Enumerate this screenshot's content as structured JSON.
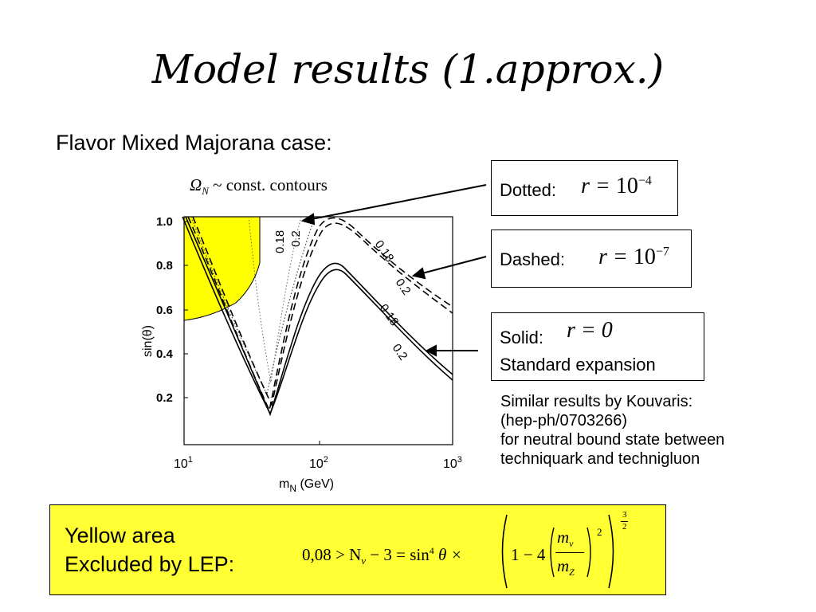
{
  "slide": {
    "title": "Model results (1.approx.)",
    "subtitle": "Flavor Mixed Majorana case:"
  },
  "plot": {
    "title_prefix": "Ω",
    "title_sub": "N",
    "title_rest": " ~ const.  contours",
    "ylabel": "sin(θ)",
    "xlabel_main": "m",
    "xlabel_sub": "N",
    "xlabel_unit": " (GeV)",
    "yticks": [
      "1.0",
      "0.8",
      "0.6",
      "0.4",
      "0.2"
    ],
    "xticks": [
      {
        "base": "10",
        "exp": "1"
      },
      {
        "base": "10",
        "exp": "2"
      },
      {
        "base": "10",
        "exp": "3"
      }
    ],
    "contour_labels": [
      "0.18",
      "0.2",
      "0.18",
      "0.2",
      "0.18",
      "0.2"
    ],
    "colors": {
      "excluded": "#ffff00",
      "axis": "#000000"
    }
  },
  "legend": {
    "dotted_label": "Dotted:",
    "dotted_eq_r": "r",
    "dotted_eq_val": "10",
    "dotted_eq_exp": "−4",
    "dashed_label": "Dashed:",
    "dashed_eq_r": "r",
    "dashed_eq_val": "10",
    "dashed_eq_exp": "−7",
    "solid_label": "Solid:",
    "solid_eq": "r = 0",
    "solid_desc": "Standard expansion"
  },
  "note": {
    "line1": "Similar results by Kouvaris:",
    "line2": "(hep-ph/0703266)",
    "line3": "for neutral bound state between",
    "line4": "techniquark and technigluon"
  },
  "lep": {
    "line1": "Yellow area",
    "line2": "Excluded by LEP:",
    "formula_left": "0,08 > N",
    "formula_nu": "ν",
    "formula_mid": " − 3 = sin",
    "formula_four": "4",
    "formula_theta": " θ × ",
    "formula_one": "1 − 4",
    "frac_num": "m",
    "frac_num_sub": "ν",
    "frac_den": "m",
    "frac_den_sub": "Z",
    "sq": "2",
    "pow_num": "3",
    "pow_den": "2",
    "bg_color": "#ffff33"
  }
}
